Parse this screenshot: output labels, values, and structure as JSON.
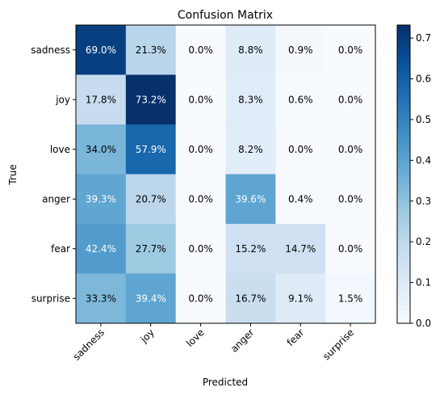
{
  "chart_data": {
    "type": "heatmap",
    "title": "Confusion Matrix",
    "xlabel": "Predicted",
    "ylabel": "True",
    "x_categories": [
      "sadness",
      "joy",
      "love",
      "anger",
      "fear",
      "surprise"
    ],
    "y_categories": [
      "sadness",
      "joy",
      "love",
      "anger",
      "fear",
      "surprise"
    ],
    "values": [
      [
        0.69,
        0.213,
        0.0,
        0.088,
        0.009,
        0.0
      ],
      [
        0.178,
        0.732,
        0.0,
        0.083,
        0.006,
        0.0
      ],
      [
        0.34,
        0.579,
        0.0,
        0.082,
        0.0,
        0.0
      ],
      [
        0.393,
        0.207,
        0.0,
        0.396,
        0.004,
        0.0
      ],
      [
        0.424,
        0.277,
        0.0,
        0.152,
        0.147,
        0.0
      ],
      [
        0.333,
        0.394,
        0.0,
        0.167,
        0.091,
        0.015
      ]
    ],
    "cell_labels": [
      [
        "69.0%",
        "21.3%",
        "0.0%",
        "8.8%",
        "0.9%",
        "0.0%"
      ],
      [
        "17.8%",
        "73.2%",
        "0.0%",
        "8.3%",
        "0.6%",
        "0.0%"
      ],
      [
        "34.0%",
        "57.9%",
        "0.0%",
        "8.2%",
        "0.0%",
        "0.0%"
      ],
      [
        "39.3%",
        "20.7%",
        "0.0%",
        "39.6%",
        "0.4%",
        "0.0%"
      ],
      [
        "42.4%",
        "27.7%",
        "0.0%",
        "15.2%",
        "14.7%",
        "0.0%"
      ],
      [
        "33.3%",
        "39.4%",
        "0.0%",
        "16.7%",
        "9.1%",
        "1.5%"
      ]
    ],
    "colormap": "Blues",
    "colorbar": {
      "range": [
        0.0,
        0.732
      ],
      "ticks": [
        0.0,
        0.1,
        0.2,
        0.3,
        0.4,
        0.5,
        0.6,
        0.7
      ],
      "tick_labels": [
        "0.0",
        "0.1",
        "0.2",
        "0.3",
        "0.4",
        "0.5",
        "0.6",
        "0.7"
      ]
    },
    "grid": false
  }
}
